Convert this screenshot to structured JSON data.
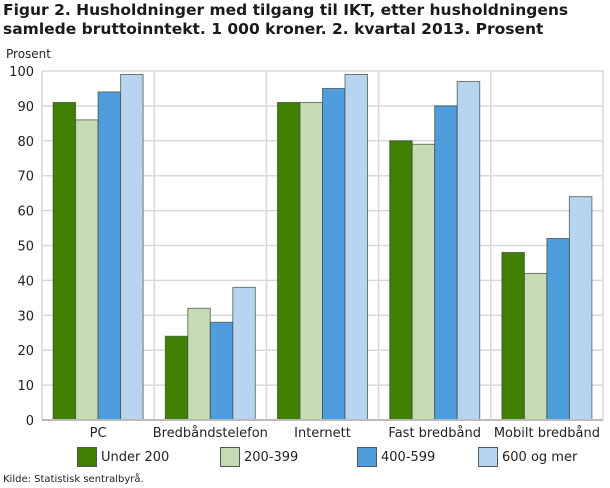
{
  "chart_data": {
    "type": "bar",
    "title": "Figur 2. Husholdninger med tilgang til IKT, etter husholdningens samlede bruttoinntekt. 1 000 kroner. 2. kvartal 2013. Prosent",
    "ylabel": "Prosent",
    "xlabel": "",
    "ylim": [
      0,
      100
    ],
    "yticks": [
      0,
      10,
      20,
      30,
      40,
      50,
      60,
      70,
      80,
      90,
      100
    ],
    "grid": true,
    "legend_position": "bottom",
    "categories": [
      "PC",
      "Bredbåndstelefon",
      "Internett",
      "Fast bredbånd",
      "Mobilt bredbånd"
    ],
    "series": [
      {
        "name": "Under 200",
        "color": "#3f8000",
        "values": [
          91,
          24,
          91,
          80,
          48
        ]
      },
      {
        "name": "200-399",
        "color": "#c6dbb4",
        "values": [
          86,
          32,
          91,
          79,
          42
        ]
      },
      {
        "name": "400-599",
        "color": "#4f9ddd",
        "values": [
          94,
          28,
          95,
          90,
          52
        ]
      },
      {
        "name": "600 og mer",
        "color": "#b7d5f0",
        "values": [
          99,
          38,
          99,
          97,
          64
        ]
      }
    ],
    "source": "Kilde: Statistisk sentralbyrå."
  }
}
